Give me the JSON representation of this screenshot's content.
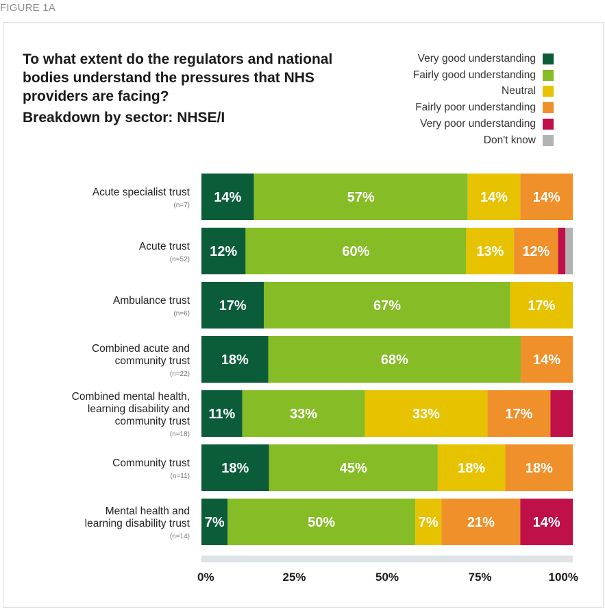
{
  "figure_label": "FIGURE 1A",
  "chart_data": {
    "type": "bar",
    "orientation": "horizontal",
    "stacked": true,
    "title": "To what extent do the regulators and national bodies understand the pressures that NHS providers are facing?",
    "subtitle": "Breakdown by sector: NHSE/I",
    "xlim": [
      0,
      100
    ],
    "x_ticks": [
      "0%",
      "25%",
      "50%",
      "75%",
      "100%"
    ],
    "legend_position": "top-right",
    "categories": [
      {
        "label": [
          "Acute specialist trust"
        ],
        "n": "(n=7)"
      },
      {
        "label": [
          "Acute trust"
        ],
        "n": "(n=52)"
      },
      {
        "label": [
          "Ambulance trust"
        ],
        "n": "(n=6)"
      },
      {
        "label": [
          "Combined acute and",
          "community trust"
        ],
        "n": "(n=22)"
      },
      {
        "label": [
          "Combined mental health,",
          "learning disability and",
          "community trust"
        ],
        "n": "(n=18)"
      },
      {
        "label": [
          "Community trust"
        ],
        "n": "(n=11)"
      },
      {
        "label": [
          "Mental health and",
          "learning disability trust"
        ],
        "n": "(n=14)"
      }
    ],
    "series": [
      {
        "name": "Very good understanding",
        "color": "#0b5d3a",
        "values": [
          14,
          12,
          17,
          18,
          11,
          18,
          7
        ]
      },
      {
        "name": "Fairly good understanding",
        "color": "#86bc25",
        "values": [
          57,
          60,
          67,
          68,
          33,
          45,
          50
        ]
      },
      {
        "name": "Neutral",
        "color": "#e6c200",
        "values": [
          14,
          13,
          17,
          0,
          33,
          18,
          7
        ]
      },
      {
        "name": "Fairly poor understanding",
        "color": "#f0902a",
        "values": [
          14,
          12,
          0,
          14,
          17,
          18,
          21
        ]
      },
      {
        "name": "Very poor understanding",
        "color": "#c0104a",
        "values": [
          0,
          2,
          0,
          0,
          6,
          0,
          14
        ]
      },
      {
        "name": "Don't know",
        "color": "#b3b3b3",
        "values": [
          0,
          2,
          0,
          0,
          0,
          0,
          0
        ]
      }
    ],
    "data_labels": [
      [
        "14%",
        "57%",
        "14%",
        "14%",
        "",
        ""
      ],
      [
        "12%",
        "60%",
        "13%",
        "12%",
        "",
        ""
      ],
      [
        "17%",
        "67%",
        "17%",
        "",
        "",
        ""
      ],
      [
        "18%",
        "68%",
        "",
        "14%",
        "",
        ""
      ],
      [
        "11%",
        "33%",
        "33%",
        "17%",
        "",
        ""
      ],
      [
        "18%",
        "45%",
        "18%",
        "18%",
        "",
        ""
      ],
      [
        "7%",
        "50%",
        "7%",
        "21%",
        "14%",
        ""
      ]
    ]
  }
}
